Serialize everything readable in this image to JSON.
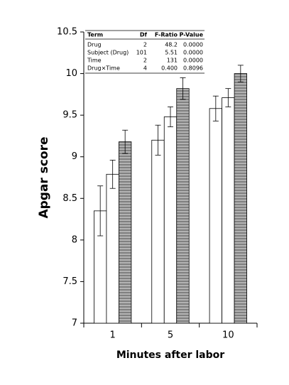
{
  "chart_data": {
    "type": "bar",
    "xlabel": "Minutes after labor",
    "ylabel": "Apgar score",
    "categories": [
      "1",
      "5",
      "10"
    ],
    "series": [
      {
        "color": "#ffffff",
        "values": [
          8.35,
          9.2,
          9.58
        ],
        "errors": [
          0.3,
          0.18,
          0.15
        ]
      },
      {
        "color": "#ffffff",
        "values": [
          8.79,
          9.48,
          9.71
        ],
        "errors": [
          0.17,
          0.12,
          0.11
        ]
      },
      {
        "color": "#808080",
        "pattern": "horizontal-stripes",
        "values": [
          9.18,
          9.82,
          10.0
        ],
        "errors": [
          0.14,
          0.13,
          0.1
        ]
      }
    ],
    "ylim": [
      7,
      10.5
    ],
    "yticks": [
      7,
      7.5,
      8,
      8.5,
      9,
      9.5,
      10,
      10.5
    ],
    "table": {
      "columns": [
        "Term",
        "Df",
        "F-Ratio",
        "P-Value"
      ],
      "rows": [
        [
          "Drug",
          "2",
          "48.2",
          "0.0000"
        ],
        [
          "Subject (Drug)",
          "101",
          "5.51",
          "0.0000"
        ],
        [
          "Time",
          "2",
          "131",
          "0.0000"
        ],
        [
          "Drug×Time",
          "4",
          "0.400",
          "0.8096"
        ]
      ]
    }
  }
}
